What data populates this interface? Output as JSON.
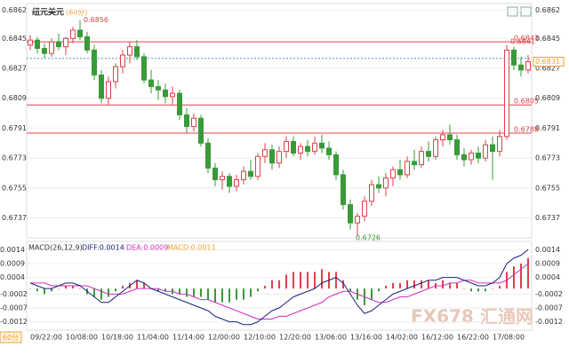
{
  "chart_data": {
    "type": "candlestick",
    "title": "纽元美元",
    "period": "(60分)",
    "period_button": "60分",
    "watermark": "FX678",
    "watermark_cn": "汇通网",
    "ylim": [
      0.6725,
      0.6866
    ],
    "yticks": [
      0.6862,
      0.6845,
      0.6827,
      0.6809,
      0.6791,
      0.6773,
      0.6755,
      0.6737
    ],
    "levels": [
      0.6843,
      0.6805,
      0.6788
    ],
    "level_color": "#e0404a",
    "dashed_level": 0.6833,
    "up_color": "#e0404a",
    "down_color": "#3a9a3a",
    "last_color": "#f0a030",
    "x_labels": [
      "09/22:00",
      "10/08:00",
      "10/18:00",
      "11/04:00",
      "11/14:00",
      "12/00:00",
      "12/10:00",
      "12/20:00",
      "13/06:00",
      "13/16:00",
      "14/02:00",
      "16/12:00",
      "16/22:00",
      "17/08:00"
    ],
    "ohlc": [
      [
        0.6841,
        0.6847,
        0.6838,
        0.6844
      ],
      [
        0.6844,
        0.6846,
        0.6836,
        0.6839
      ],
      [
        0.6839,
        0.6842,
        0.6833,
        0.6836
      ],
      [
        0.6836,
        0.6845,
        0.6834,
        0.6843
      ],
      [
        0.6843,
        0.6848,
        0.6838,
        0.684
      ],
      [
        0.684,
        0.6846,
        0.6835,
        0.6845
      ],
      [
        0.6845,
        0.6852,
        0.6842,
        0.685
      ],
      [
        0.685,
        0.6856,
        0.6844,
        0.6846
      ],
      [
        0.6846,
        0.6849,
        0.6836,
        0.6838
      ],
      [
        0.6838,
        0.6841,
        0.682,
        0.6823
      ],
      [
        0.6823,
        0.6826,
        0.6806,
        0.6809
      ],
      [
        0.6809,
        0.6822,
        0.6805,
        0.6819
      ],
      [
        0.6819,
        0.683,
        0.6815,
        0.6828
      ],
      [
        0.6828,
        0.6838,
        0.6824,
        0.6835
      ],
      [
        0.6835,
        0.6843,
        0.683,
        0.684
      ],
      [
        0.684,
        0.6844,
        0.6832,
        0.6834
      ],
      [
        0.6834,
        0.6836,
        0.6818,
        0.682
      ],
      [
        0.682,
        0.6826,
        0.6812,
        0.6816
      ],
      [
        0.6816,
        0.682,
        0.6808,
        0.6814
      ],
      [
        0.6814,
        0.6818,
        0.6806,
        0.681
      ],
      [
        0.681,
        0.6816,
        0.6805,
        0.6812
      ],
      [
        0.6812,
        0.6814,
        0.6796,
        0.6799
      ],
      [
        0.6799,
        0.6803,
        0.6788,
        0.6792
      ],
      [
        0.6792,
        0.68,
        0.6789,
        0.6797
      ],
      [
        0.6797,
        0.6799,
        0.678,
        0.6782
      ],
      [
        0.6782,
        0.6785,
        0.6764,
        0.6767
      ],
      [
        0.6767,
        0.677,
        0.6756,
        0.676
      ],
      [
        0.676,
        0.6765,
        0.6754,
        0.6762
      ],
      [
        0.6762,
        0.6764,
        0.6752,
        0.6756
      ],
      [
        0.6756,
        0.6763,
        0.6753,
        0.676
      ],
      [
        0.676,
        0.6768,
        0.6757,
        0.6765
      ],
      [
        0.6765,
        0.6772,
        0.676,
        0.6762
      ],
      [
        0.6762,
        0.6776,
        0.676,
        0.6774
      ],
      [
        0.6774,
        0.6782,
        0.677,
        0.6778
      ],
      [
        0.6778,
        0.6781,
        0.6766,
        0.677
      ],
      [
        0.677,
        0.678,
        0.6767,
        0.6777
      ],
      [
        0.6777,
        0.6786,
        0.6773,
        0.6783
      ],
      [
        0.6783,
        0.6786,
        0.6774,
        0.6776
      ],
      [
        0.6776,
        0.6782,
        0.6772,
        0.678
      ],
      [
        0.678,
        0.6784,
        0.6774,
        0.6777
      ],
      [
        0.6777,
        0.6786,
        0.6775,
        0.6782
      ],
      [
        0.6782,
        0.6787,
        0.6776,
        0.6779
      ],
      [
        0.6779,
        0.6783,
        0.6772,
        0.6775
      ],
      [
        0.6775,
        0.6777,
        0.676,
        0.6763
      ],
      [
        0.6763,
        0.6766,
        0.6742,
        0.6745
      ],
      [
        0.6745,
        0.6748,
        0.673,
        0.6734
      ],
      [
        0.6734,
        0.674,
        0.6726,
        0.6738
      ],
      [
        0.6738,
        0.675,
        0.6735,
        0.6747
      ],
      [
        0.6747,
        0.676,
        0.6744,
        0.6757
      ],
      [
        0.6757,
        0.6762,
        0.6752,
        0.6755
      ],
      [
        0.6755,
        0.6764,
        0.675,
        0.6761
      ],
      [
        0.6761,
        0.6768,
        0.6756,
        0.6766
      ],
      [
        0.6766,
        0.6772,
        0.676,
        0.6763
      ],
      [
        0.6763,
        0.6774,
        0.6761,
        0.6771
      ],
      [
        0.6771,
        0.6778,
        0.6766,
        0.6769
      ],
      [
        0.6769,
        0.678,
        0.6767,
        0.6777
      ],
      [
        0.6777,
        0.6783,
        0.6771,
        0.6774
      ],
      [
        0.6774,
        0.6786,
        0.6772,
        0.6784
      ],
      [
        0.6784,
        0.679,
        0.678,
        0.6787
      ],
      [
        0.6787,
        0.6793,
        0.6781,
        0.6784
      ],
      [
        0.6784,
        0.6787,
        0.6772,
        0.6775
      ],
      [
        0.6775,
        0.6779,
        0.6768,
        0.6772
      ],
      [
        0.6772,
        0.6778,
        0.6769,
        0.6776
      ],
      [
        0.6776,
        0.678,
        0.677,
        0.6773
      ],
      [
        0.6773,
        0.6784,
        0.6771,
        0.6781
      ],
      [
        0.6781,
        0.6786,
        0.676,
        0.6777
      ],
      [
        0.6777,
        0.679,
        0.6774,
        0.6786
      ],
      [
        0.6786,
        0.6841,
        0.6784,
        0.6838
      ],
      [
        0.6838,
        0.684,
        0.6826,
        0.6829
      ],
      [
        0.6829,
        0.6834,
        0.6822,
        0.6826
      ],
      [
        0.6826,
        0.6835,
        0.6824,
        0.6831
      ]
    ],
    "macd": {
      "title": "MACD(26,12,9)",
      "diff_label": "DIFF:0.0014",
      "dea_label": "DEA:0.0009",
      "macd_label": "MACD:0.0011",
      "ylim": [
        -0.0015,
        0.0017
      ],
      "yticks": [
        0.0014,
        0.0009,
        0.0004,
        -0.0002,
        -0.0007,
        -0.0012
      ],
      "diff_color": "#1a237e",
      "dea_color": "#d030c0",
      "diff": [
        0.0002,
        0.0001,
        0,
        0,
        0.0001,
        0.0002,
        0.0002,
        0.0001,
        -0.0001,
        -0.0003,
        -0.0005,
        -0.0005,
        -0.0003,
        -0.0001,
        0.0001,
        0.0003,
        0.0002,
        0,
        -0.0001,
        -0.0002,
        -0.0003,
        -0.0004,
        -0.0005,
        -0.0006,
        -0.0007,
        -0.0008,
        -0.001,
        -0.0011,
        -0.0012,
        -0.0012,
        -0.0013,
        -0.0013,
        -0.0012,
        -0.001,
        -0.0008,
        -0.0007,
        -0.0005,
        -0.0003,
        -0.0002,
        -0.0001,
        0,
        0.0002,
        0.0003,
        0.0004,
        0.0002,
        -0.0002,
        -0.0006,
        -0.0009,
        -0.0008,
        -0.0006,
        -0.0004,
        -0.0002,
        -0.0001,
        0,
        0.0001,
        0.0002,
        0.0003,
        0.0003,
        0.0004,
        0.0004,
        0.0004,
        0.0003,
        0.0002,
        0.0001,
        0.0001,
        0.0002,
        0.0004,
        0.0009,
        0.0011,
        0.0012,
        0.0014
      ],
      "dea": [
        0.0002,
        0.0002,
        0.0002,
        0.0001,
        0.0001,
        0.0001,
        0.0001,
        0.0001,
        0.0001,
        0,
        -0.0001,
        -0.0002,
        -0.0002,
        -0.0002,
        -0.0001,
        0,
        0,
        0,
        0,
        -0.0001,
        -0.0001,
        -0.0002,
        -0.0002,
        -0.0003,
        -0.0004,
        -0.0004,
        -0.0005,
        -0.0006,
        -0.0007,
        -0.0008,
        -0.0009,
        -0.001,
        -0.0011,
        -0.0011,
        -0.0011,
        -0.001,
        -0.001,
        -0.0009,
        -0.0008,
        -0.0007,
        -0.0006,
        -0.0005,
        -0.0003,
        -0.0002,
        -0.0001,
        -0.0001,
        -0.0002,
        -0.0003,
        -0.0004,
        -0.0005,
        -0.0005,
        -0.0004,
        -0.0003,
        -0.0003,
        -0.0002,
        -0.0001,
        0,
        0.0001,
        0.0001,
        0.0002,
        0.0002,
        0.0003,
        0.0003,
        0.0002,
        0.0002,
        0.0002,
        0.0002,
        0.0003,
        0.0005,
        0.0007,
        0.0009
      ],
      "hist": [
        0,
        -0.0001,
        -0.0002,
        -0.0001,
        0,
        0.0001,
        0.0001,
        0,
        -0.0002,
        -0.0003,
        -0.0004,
        -0.0003,
        -0.0001,
        0.0001,
        0.0002,
        0.0003,
        0.0002,
        0,
        -0.0001,
        -0.0001,
        -0.0002,
        -0.0002,
        -0.0003,
        -0.0003,
        -0.0003,
        -0.0004,
        -0.0005,
        -0.0005,
        -0.0005,
        -0.0004,
        -0.0004,
        -0.0003,
        -0.0001,
        0.0001,
        0.0003,
        0.0003,
        0.0005,
        0.0006,
        0.0006,
        0.0006,
        0.0006,
        0.0007,
        0.0006,
        0.0006,
        0.0003,
        -0.0001,
        -0.0004,
        -0.0006,
        -0.0004,
        -0.0001,
        0.0001,
        0.0002,
        0.0002,
        0.0003,
        0.0003,
        0.0003,
        0.0003,
        0.0002,
        0.0003,
        0.0002,
        0.0002,
        0,
        -0.0001,
        -0.0001,
        -0.0001,
        0,
        0.0001,
        0.0006,
        0.0008,
        0.0009,
        0.0011
      ]
    }
  }
}
